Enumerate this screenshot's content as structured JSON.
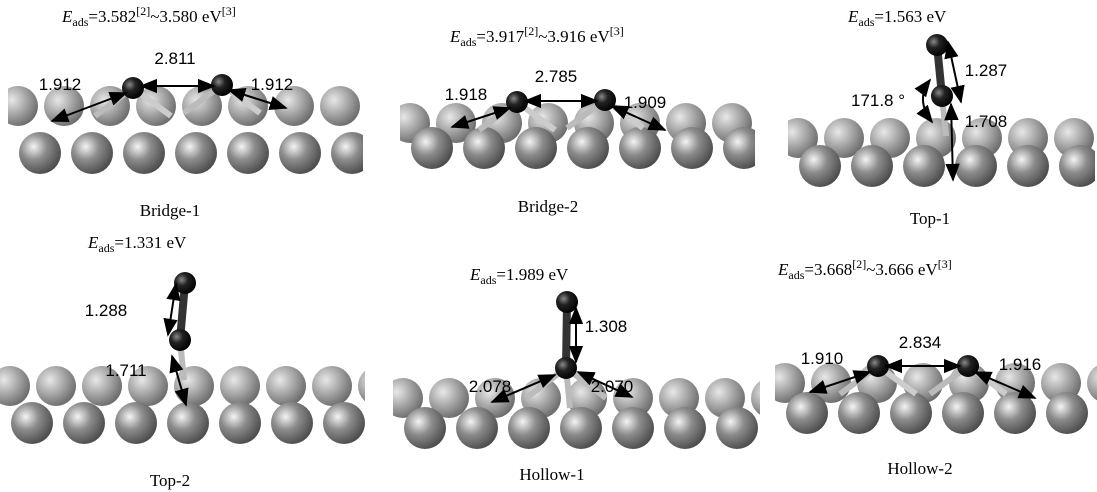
{
  "panels": [
    {
      "label": "Bridge-1",
      "energy": [
        "E",
        "ads",
        "=3.582",
        "[2]",
        "~3.580 eV",
        "[3]"
      ],
      "distances": [
        "2.811",
        "1.912",
        "1.912"
      ]
    },
    {
      "label": "Bridge-2",
      "energy": [
        "E",
        "ads",
        "=3.917",
        "[2]",
        "~3.916 eV",
        "[3]"
      ],
      "distances": [
        "2.785",
        "1.918",
        "1.909"
      ]
    },
    {
      "label": "Top-1",
      "energy": [
        "E",
        "ads",
        "=1.563 eV"
      ],
      "distances": [
        "1.287",
        "1.708"
      ],
      "angle": "171.8 °"
    },
    {
      "label": "Top-2",
      "energy": [
        "E",
        "ads",
        "=1.331 eV"
      ],
      "distances": [
        "1.288",
        "1.711"
      ]
    },
    {
      "label": "Hollow-1",
      "energy": [
        "E",
        "ads",
        "=1.989 eV"
      ],
      "distances": [
        "1.308",
        "2.078",
        "2.070"
      ]
    },
    {
      "label": "Hollow-2",
      "energy": [
        "E",
        "ads",
        "=3.668",
        "[2]",
        "~3.666 eV",
        "[3]"
      ],
      "distances": [
        "2.834",
        "1.910",
        "1.916"
      ]
    }
  ]
}
